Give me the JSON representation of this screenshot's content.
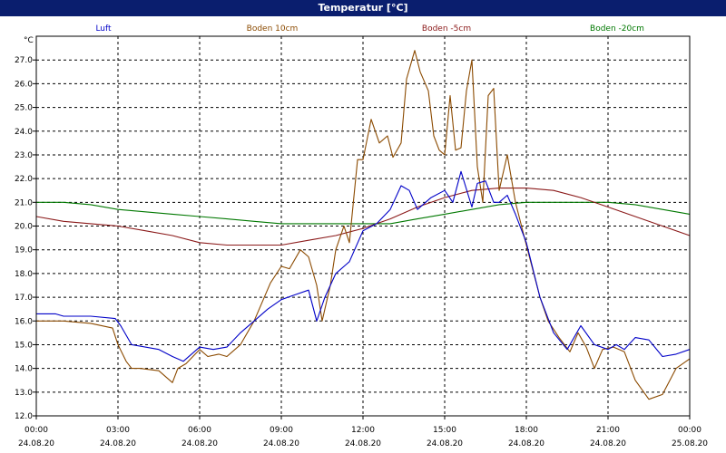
{
  "window": {
    "title": "Temperatur [°C]"
  },
  "chart_data": {
    "type": "line",
    "title": "Temperatur [°C]",
    "ylabel": "°C",
    "ylim": [
      12.0,
      28.0
    ],
    "y_ticks": [
      "12.0",
      "13.0",
      "14.0",
      "15.0",
      "16.0",
      "17.0",
      "18.0",
      "19.0",
      "20.0",
      "21.0",
      "22.0",
      "23.0",
      "24.0",
      "25.0",
      "26.0",
      "27.0"
    ],
    "xlim": [
      0,
      24
    ],
    "x_ticks": [
      {
        "time": "00:00",
        "date": "24.08.20"
      },
      {
        "time": "03:00",
        "date": "24.08.20"
      },
      {
        "time": "06:00",
        "date": "24.08.20"
      },
      {
        "time": "09:00",
        "date": "24.08.20"
      },
      {
        "time": "12:00",
        "date": "24.08.20"
      },
      {
        "time": "15:00",
        "date": "24.08.20"
      },
      {
        "time": "18:00",
        "date": "24.08.20"
      },
      {
        "time": "21:00",
        "date": "24.08.20"
      },
      {
        "time": "00:00",
        "date": "25.08.20"
      }
    ],
    "grid": true,
    "legend_position": "top",
    "series": [
      {
        "name": "Luft",
        "color": "#0000c8",
        "x": [
          0,
          0.7,
          1,
          1.7,
          2,
          2.9,
          3.1,
          3.5,
          4.5,
          5,
          5.4,
          6,
          6.5,
          7,
          7.5,
          8,
          8.5,
          9,
          9.5,
          10,
          10.3,
          10.6,
          11,
          11.5,
          12,
          12.5,
          13,
          13.4,
          13.7,
          14,
          14.5,
          15,
          15.3,
          15.6,
          16,
          16.2,
          16.5,
          16.8,
          17,
          17.3,
          17.6,
          18,
          18.5,
          19,
          19.5,
          20,
          20.5,
          21,
          21.3,
          21.6,
          22,
          22.5,
          23,
          23.5,
          24
        ],
        "y": [
          16.3,
          16.3,
          16.2,
          16.2,
          16.2,
          16.1,
          15.8,
          15.0,
          14.8,
          14.5,
          14.3,
          14.9,
          14.8,
          14.9,
          15.5,
          16.0,
          16.5,
          16.9,
          17.1,
          17.3,
          16.0,
          17.0,
          18.0,
          18.5,
          19.8,
          20.1,
          20.7,
          21.7,
          21.5,
          20.7,
          21.2,
          21.5,
          21.0,
          22.3,
          20.8,
          21.8,
          21.9,
          21.0,
          21.0,
          21.3,
          20.5,
          19.3,
          17.0,
          15.5,
          14.8,
          15.8,
          15.0,
          14.8,
          15.0,
          14.8,
          15.3,
          15.2,
          14.5,
          14.6,
          14.8
        ]
      },
      {
        "name": "Boden 10cm",
        "color": "#8b4a00",
        "x": [
          0,
          0.5,
          1,
          2,
          2.8,
          3,
          3.3,
          3.5,
          3.8,
          4.5,
          5,
          5.2,
          5.5,
          6,
          6.3,
          6.7,
          7,
          7.5,
          8,
          8.3,
          8.6,
          9,
          9.3,
          9.7,
          10,
          10.3,
          10.5,
          10.8,
          11,
          11.3,
          11.5,
          11.8,
          12,
          12.3,
          12.6,
          12.9,
          13.1,
          13.4,
          13.6,
          13.9,
          14.1,
          14.4,
          14.6,
          14.8,
          15,
          15.2,
          15.4,
          15.6,
          15.8,
          16,
          16.2,
          16.4,
          16.6,
          16.8,
          17,
          17.3,
          17.6,
          18,
          18.5,
          18.8,
          19.2,
          19.6,
          19.9,
          20.2,
          20.5,
          20.8,
          21.2,
          21.6,
          22,
          22.5,
          23,
          23.5,
          24
        ],
        "y": [
          16.0,
          16.0,
          16.0,
          15.9,
          15.7,
          15.0,
          14.3,
          14.0,
          14.0,
          13.9,
          13.4,
          14.0,
          14.2,
          14.8,
          14.5,
          14.6,
          14.5,
          15.0,
          16.0,
          16.8,
          17.6,
          18.3,
          18.2,
          19.0,
          18.7,
          17.5,
          16.0,
          17.5,
          19.0,
          20.0,
          19.3,
          22.8,
          22.8,
          24.5,
          23.5,
          23.8,
          22.9,
          23.5,
          26.2,
          27.4,
          26.5,
          25.7,
          23.8,
          23.2,
          23.0,
          25.5,
          23.2,
          23.3,
          25.7,
          27.0,
          22.5,
          21.0,
          25.5,
          25.8,
          21.5,
          23.0,
          21.0,
          19.2,
          17.0,
          16.0,
          15.3,
          14.7,
          15.5,
          14.9,
          14.0,
          14.8,
          14.9,
          14.7,
          13.5,
          12.7,
          12.9,
          14.0,
          14.4
        ]
      },
      {
        "name": "Boden -5cm",
        "color": "#8b1a1a",
        "x": [
          0,
          1,
          2,
          3,
          4,
          5,
          6,
          7,
          8,
          9,
          10,
          11,
          12,
          13,
          14,
          15,
          16,
          17,
          18,
          19,
          20,
          21,
          22,
          23,
          24
        ],
        "y": [
          20.4,
          20.2,
          20.1,
          20.0,
          19.8,
          19.6,
          19.3,
          19.2,
          19.2,
          19.2,
          19.4,
          19.6,
          19.9,
          20.3,
          20.8,
          21.2,
          21.5,
          21.6,
          21.6,
          21.5,
          21.2,
          20.8,
          20.4,
          20.0,
          19.6
        ]
      },
      {
        "name": "Boden -20cm",
        "color": "#007800",
        "x": [
          0,
          1,
          2,
          3,
          4,
          5,
          6,
          7,
          8,
          9,
          10,
          11,
          12,
          13,
          14,
          15,
          16,
          17,
          18,
          19,
          20,
          21,
          22,
          23,
          24
        ],
        "y": [
          21.0,
          21.0,
          20.9,
          20.7,
          20.6,
          20.5,
          20.4,
          20.3,
          20.2,
          20.1,
          20.1,
          20.1,
          20.1,
          20.1,
          20.3,
          20.5,
          20.7,
          20.9,
          21.0,
          21.0,
          21.0,
          21.0,
          20.9,
          20.7,
          20.5
        ]
      }
    ]
  }
}
